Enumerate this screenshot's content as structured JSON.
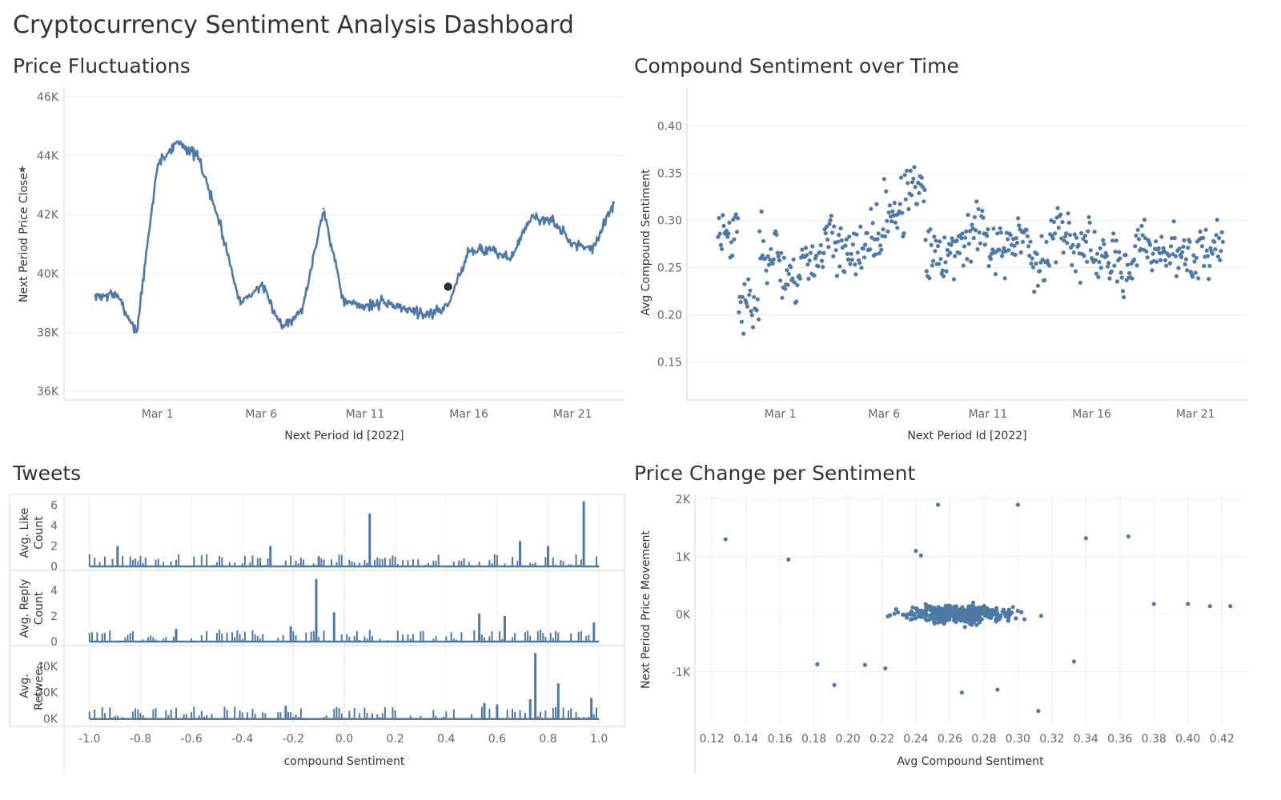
{
  "dashboard": {
    "title": "Cryptocurrency Sentiment Analysis Dashboard"
  },
  "colors": {
    "series": "#4e79a7",
    "grid": "#ececec",
    "axis": "#666666",
    "frame": "#d4d4d4",
    "marker": "#222222"
  },
  "chart_data": [
    {
      "id": "price",
      "title": "Price Fluctuations",
      "type": "line",
      "xlabel": "Next Period Id [2022]",
      "ylabel": "Next Period Price Close",
      "x_ticks": [
        "Mar 1",
        "Mar 6",
        "Mar 11",
        "Mar 16",
        "Mar 21"
      ],
      "y_ticks": [
        "46K",
        "44K",
        "42K",
        "40K",
        "38K",
        "36K"
      ],
      "ylim": [
        35700,
        46300
      ],
      "xlim": [
        "2022-02-24 12:00",
        "2022-03-23 12:00"
      ],
      "grid": true,
      "highlight_point": {
        "x": "2022-03-15",
        "y": 39550
      },
      "series": [
        {
          "x": [
            "2022-02-26",
            "2022-02-27",
            "2022-02-28",
            "2022-03-01",
            "2022-03-02",
            "2022-03-03",
            "2022-03-04",
            "2022-03-05",
            "2022-03-06",
            "2022-03-07",
            "2022-03-08",
            "2022-03-09",
            "2022-03-10",
            "2022-03-11",
            "2022-03-12",
            "2022-03-13",
            "2022-03-14",
            "2022-03-15",
            "2022-03-16",
            "2022-03-17",
            "2022-03-18",
            "2022-03-19",
            "2022-03-20",
            "2022-03-21",
            "2022-03-22",
            "2022-03-23"
          ],
          "values": [
            39200,
            39300,
            38000,
            43700,
            44500,
            43900,
            41700,
            39000,
            39600,
            38200,
            38800,
            42200,
            39000,
            38900,
            39000,
            38800,
            38600,
            38900,
            40800,
            40800,
            40500,
            41900,
            41800,
            41000,
            40900,
            42400
          ]
        }
      ]
    },
    {
      "id": "sentiment",
      "title": "Compound Sentiment over Time",
      "type": "scatter",
      "xlabel": "Next Period Id [2022]",
      "ylabel": "Avg Compound Sentiment",
      "x_ticks": [
        "Mar 1",
        "Mar 6",
        "Mar 11",
        "Mar 16",
        "Mar 21"
      ],
      "y_ticks": [
        "0.40",
        "0.35",
        "0.30",
        "0.25",
        "0.20",
        "0.15"
      ],
      "ylim": [
        0.11,
        0.44
      ],
      "xlim": [
        "2022-02-24 12:00",
        "2022-03-23 12:00"
      ],
      "grid": true,
      "series": [
        {
          "x": [
            "2022-02-26",
            "2022-02-27",
            "2022-02-28",
            "2022-03-01",
            "2022-03-02",
            "2022-03-03",
            "2022-03-04",
            "2022-03-05",
            "2022-03-06",
            "2022-03-07",
            "2022-03-08",
            "2022-03-09",
            "2022-03-10",
            "2022-03-11",
            "2022-03-12",
            "2022-03-13",
            "2022-03-14",
            "2022-03-15",
            "2022-03-16",
            "2022-03-17",
            "2022-03-18",
            "2022-03-19",
            "2022-03-20",
            "2022-03-21",
            "2022-03-22",
            "2022-03-23"
          ],
          "values": [
            0.29,
            0.21,
            0.27,
            0.24,
            0.26,
            0.28,
            0.26,
            0.28,
            0.31,
            0.33,
            0.26,
            0.27,
            0.29,
            0.27,
            0.28,
            0.26,
            0.29,
            0.27,
            0.26,
            0.25,
            0.27,
            0.27,
            0.26,
            0.27,
            0.28,
            0.27
          ]
        }
      ]
    },
    {
      "id": "tweets",
      "title": "Tweets",
      "type": "bar",
      "xlabel": "compound Sentiment",
      "x_ticks": [
        "-1.0",
        "-0.8",
        "-0.6",
        "-0.4",
        "-0.2",
        "0.0",
        "0.2",
        "0.4",
        "0.6",
        "0.8",
        "1.0"
      ],
      "xlim": [
        -1.1,
        1.1
      ],
      "grid": true,
      "series": [
        {
          "name": "Avg. Like Count",
          "y_ticks": [
            "6",
            "4",
            "2",
            "0"
          ],
          "ylim": [
            0,
            6.6
          ],
          "x": [
            -0.89,
            -0.29,
            -0.1,
            0.1,
            0.69,
            0.8,
            0.94
          ],
          "values": [
            2.0,
            2.0,
            1.0,
            5.2,
            2.5,
            2.0,
            6.4
          ]
        },
        {
          "name": "Avg. Reply Count",
          "y_ticks": [
            "4",
            "2",
            "0"
          ],
          "ylim": [
            0,
            5.2
          ],
          "x": [
            -0.66,
            -0.21,
            -0.11,
            -0.04,
            0.53,
            0.63,
            0.98
          ],
          "values": [
            1.0,
            1.2,
            4.9,
            2.3,
            2.2,
            2.0,
            1.5
          ]
        },
        {
          "name": "Avg. Retwee..",
          "y_ticks": [
            "40K",
            "20K",
            "0K"
          ],
          "ylim": [
            -2000,
            52000
          ],
          "x": [
            -0.23,
            0.55,
            0.6,
            0.73,
            0.75,
            0.84,
            0.97
          ],
          "values": [
            10000,
            12000,
            11000,
            15000,
            50000,
            27000,
            16000
          ]
        }
      ]
    },
    {
      "id": "pcs",
      "title": "Price Change per Sentiment",
      "type": "scatter",
      "xlabel": "Avg Compound Sentiment",
      "ylabel": "Next Period Price Movement",
      "x_ticks": [
        "0.12",
        "0.14",
        "0.16",
        "0.18",
        "0.20",
        "0.22",
        "0.24",
        "0.26",
        "0.28",
        "0.30",
        "0.32",
        "0.34",
        "0.36",
        "0.38",
        "0.40",
        "0.42"
      ],
      "y_ticks": [
        "2K",
        "1K",
        "0K",
        "-1K"
      ],
      "xlim": [
        0.11,
        0.435
      ],
      "ylim": [
        -1920,
        2080
      ],
      "grid": true,
      "series": [
        {
          "x": [
            0.128,
            0.165,
            0.182,
            0.192,
            0.21,
            0.222,
            0.24,
            0.243,
            0.253,
            0.267,
            0.288,
            0.3,
            0.312,
            0.333,
            0.34,
            0.365,
            0.38,
            0.4,
            0.413,
            0.425
          ],
          "values": [
            1300,
            950,
            -870,
            -1230,
            -880,
            -940,
            1100,
            1020,
            1900,
            -1360,
            -1310,
            1900,
            -1680,
            -820,
            1320,
            1350,
            180,
            180,
            140,
            140
          ]
        }
      ]
    }
  ]
}
